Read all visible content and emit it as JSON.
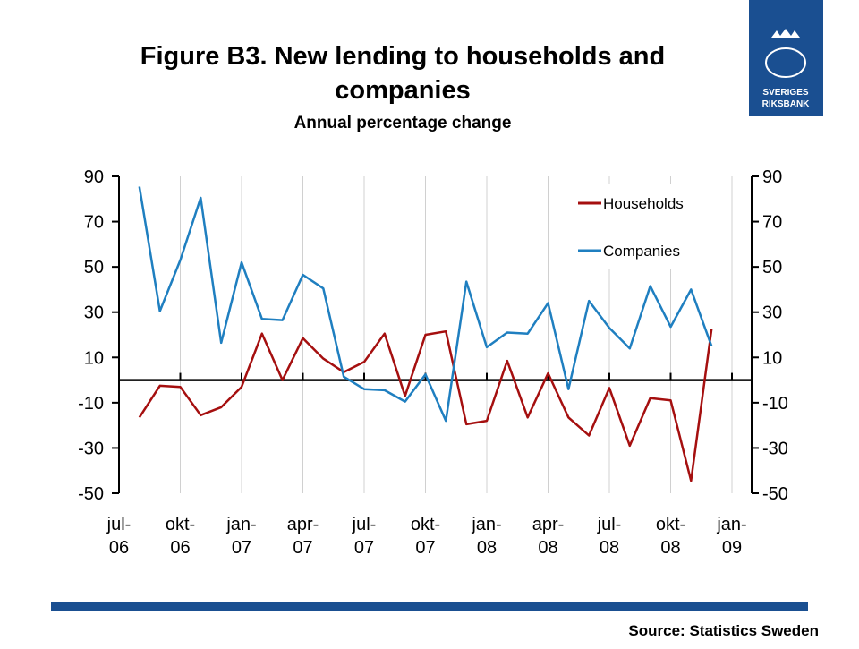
{
  "chart_data": {
    "type": "line",
    "title": "Figure B3. New lending to households and companies",
    "subtitle": "Annual percentage change",
    "source": "Source: Statistics Sweden",
    "logo": [
      "SVERIGES",
      "RIKSBANK"
    ],
    "categories": [
      "jul-06",
      null,
      null,
      "okt-06",
      null,
      null,
      "jan-07",
      null,
      null,
      "apr-07",
      null,
      null,
      "jul-07",
      null,
      null,
      "okt-07",
      null,
      null,
      "jan-08",
      null,
      null,
      "apr-08",
      null,
      null,
      "jul-08",
      null,
      null,
      "okt-08",
      null,
      null,
      "jan-09"
    ],
    "series": [
      {
        "name": "Households",
        "color": "#a50f0f",
        "values": [
          null,
          -16.5,
          -2.5,
          -3,
          -15.5,
          -12,
          -3,
          20.5,
          0,
          18.5,
          9.5,
          3.5,
          8,
          20.5,
          -7,
          20,
          21.5,
          -19.5,
          -18,
          8.5,
          -16.5,
          3,
          -16.5,
          -24.5,
          -3.5,
          -29,
          -8,
          -9,
          -44.5,
          22.5,
          null
        ]
      },
      {
        "name": "Companies",
        "color": "#1f7fc0",
        "values": [
          null,
          85.5,
          30.5,
          53,
          80.5,
          16.5,
          52,
          27,
          26.5,
          46.5,
          40.5,
          1.5,
          -4,
          -4.5,
          -9.5,
          2.5,
          -18,
          43.5,
          14.5,
          21,
          20.5,
          34,
          -4,
          35,
          23,
          14,
          41.5,
          23.5,
          40,
          15,
          null
        ]
      }
    ],
    "ylim": [
      -50,
      90
    ],
    "yticks": [
      90,
      70,
      50,
      30,
      10,
      -10,
      -30,
      -50
    ],
    "y2lim": [
      -50,
      90
    ],
    "y2ticks": [
      90,
      70,
      50,
      30,
      10,
      -10,
      -30,
      -50
    ],
    "grid": true,
    "legend": "upper right"
  }
}
